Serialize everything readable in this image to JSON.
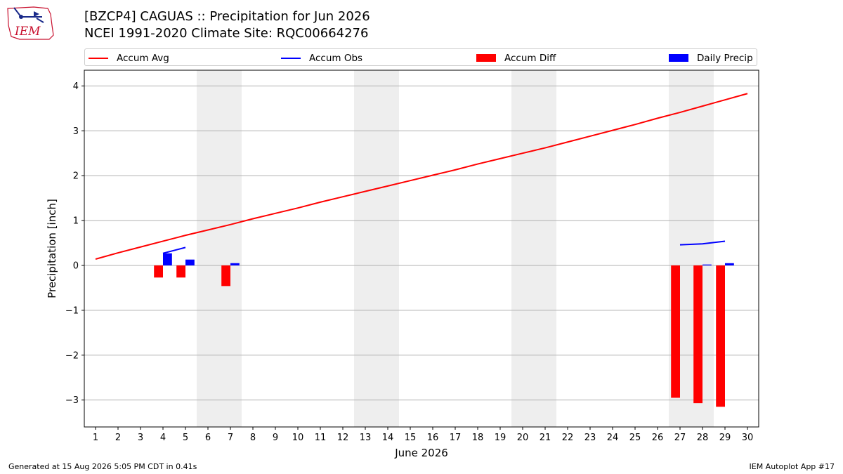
{
  "header": {
    "title_line1": "[BZCP4] CAGUAS :: Precipitation for Jun 2026",
    "title_line2": "NCEI 1991-2020 Climate Site: RQC00664276"
  },
  "logo": {
    "text": "IEM",
    "icon": "iem-logo"
  },
  "footer": {
    "generated": "Generated at 15 Aug 2026 5:05 PM CDT in 0.41s",
    "app": "IEM Autoplot App #17"
  },
  "legend": [
    {
      "label": "Accum Avg",
      "kind": "line",
      "color": "#ff0000"
    },
    {
      "label": "Accum Obs",
      "kind": "line",
      "color": "#0000ff"
    },
    {
      "label": "Accum Diff",
      "kind": "box",
      "color": "#ff0000"
    },
    {
      "label": "Daily Precip",
      "kind": "box",
      "color": "#0000ff"
    }
  ],
  "chart_data": {
    "type": "bar",
    "xlabel": "June 2026",
    "ylabel": "Precipitation [inch]",
    "xlim": [
      0.5,
      30.5
    ],
    "ylim": [
      -3.6,
      4.35
    ],
    "x_ticks": [
      1,
      2,
      3,
      4,
      5,
      6,
      7,
      8,
      9,
      10,
      11,
      12,
      13,
      14,
      15,
      16,
      17,
      18,
      19,
      20,
      21,
      22,
      23,
      24,
      25,
      26,
      27,
      28,
      29,
      30
    ],
    "y_ticks": [
      -3,
      -2,
      -1,
      0,
      1,
      2,
      3,
      4
    ],
    "y_tick_labels": [
      "−3",
      "−2",
      "−1",
      "0",
      "1",
      "2",
      "3",
      "4"
    ],
    "grid": "horizontal",
    "weekend_shading": [
      [
        5.5,
        7.5
      ],
      [
        12.5,
        14.5
      ],
      [
        19.5,
        21.5
      ],
      [
        26.5,
        28.5
      ]
    ],
    "shade_color": "#eeeeee",
    "accum_avg": {
      "name": "Accum Avg",
      "color": "#ff0000",
      "x": [
        1,
        2,
        3,
        4,
        5,
        6,
        7,
        8,
        9,
        10,
        11,
        12,
        13,
        14,
        15,
        16,
        17,
        18,
        19,
        20,
        21,
        22,
        23,
        24,
        25,
        26,
        27,
        28,
        29,
        30
      ],
      "values": [
        0.14,
        0.28,
        0.41,
        0.54,
        0.67,
        0.79,
        0.91,
        1.04,
        1.16,
        1.28,
        1.41,
        1.53,
        1.65,
        1.77,
        1.89,
        2.01,
        2.13,
        2.26,
        2.38,
        2.5,
        2.62,
        2.75,
        2.88,
        3.01,
        3.14,
        3.28,
        3.41,
        3.55,
        3.69,
        3.83
      ]
    },
    "accum_obs": {
      "name": "Accum Obs",
      "color": "#0000ff",
      "segments": [
        {
          "x": [
            4,
            5
          ],
          "values": [
            0.27,
            0.4
          ]
        },
        {
          "x": [
            27,
            28,
            29
          ],
          "values": [
            0.46,
            0.48,
            0.54
          ]
        }
      ]
    },
    "accum_diff": {
      "name": "Accum Diff",
      "color": "#ff0000",
      "x": [
        4,
        5,
        7,
        27,
        28,
        29
      ],
      "values": [
        -0.27,
        -0.27,
        -0.46,
        -2.95,
        -3.07,
        -3.15
      ]
    },
    "daily_precip": {
      "name": "Daily Precip",
      "color": "#0000ff",
      "x": [
        4,
        5,
        7,
        28,
        29
      ],
      "values": [
        0.27,
        0.13,
        0.05,
        0.02,
        0.05
      ]
    }
  }
}
